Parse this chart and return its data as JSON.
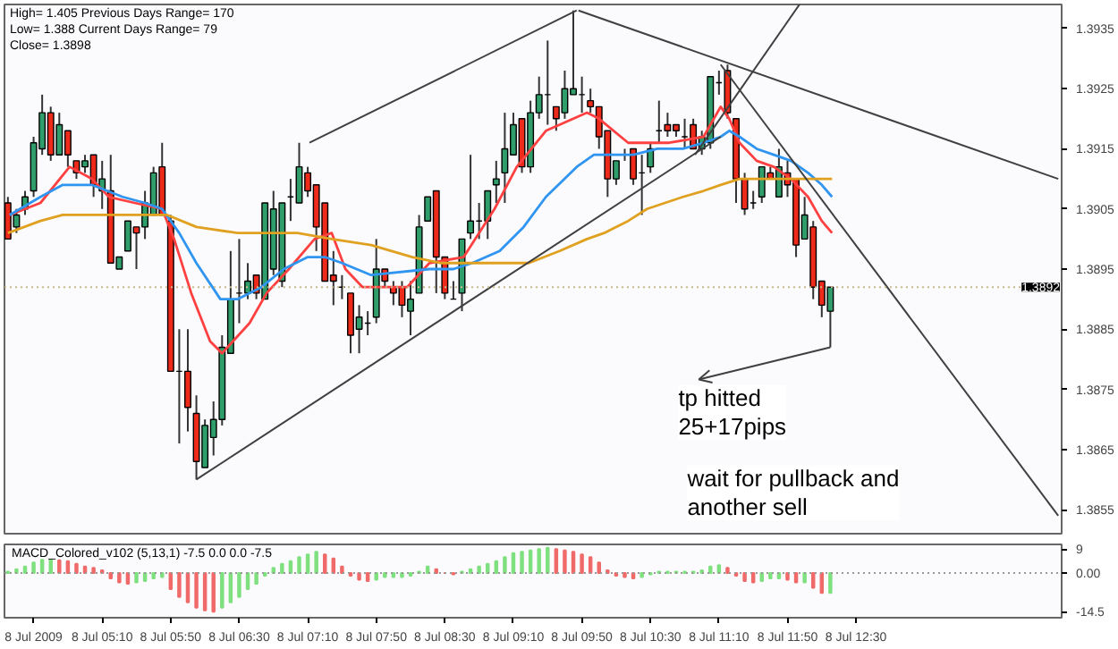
{
  "chart_data": [
    {
      "type": "candlestick",
      "x": [
        "2009-07-08T04:15",
        "2009-07-08T04:20",
        "2009-07-08T04:25",
        "2009-07-08T04:30",
        "2009-07-08T04:35",
        "2009-07-08T04:40",
        "2009-07-08T04:45",
        "2009-07-08T04:50",
        "2009-07-08T04:55",
        "2009-07-08T05:00",
        "2009-07-08T05:05",
        "2009-07-08T05:10",
        "2009-07-08T05:15",
        "2009-07-08T05:20",
        "2009-07-08T05:25",
        "2009-07-08T05:30",
        "2009-07-08T05:35",
        "2009-07-08T05:40",
        "2009-07-08T05:45",
        "2009-07-08T05:50",
        "2009-07-08T05:55",
        "2009-07-08T06:00",
        "2009-07-08T06:05",
        "2009-07-08T06:10",
        "2009-07-08T06:15",
        "2009-07-08T06:20",
        "2009-07-08T06:25",
        "2009-07-08T06:30",
        "2009-07-08T06:35",
        "2009-07-08T06:40",
        "2009-07-08T06:45",
        "2009-07-08T06:50",
        "2009-07-08T06:55",
        "2009-07-08T07:00",
        "2009-07-08T07:05",
        "2009-07-08T07:10",
        "2009-07-08T07:15",
        "2009-07-08T07:20",
        "2009-07-08T07:25",
        "2009-07-08T07:30",
        "2009-07-08T07:35",
        "2009-07-08T07:40",
        "2009-07-08T07:45",
        "2009-07-08T07:50",
        "2009-07-08T07:55",
        "2009-07-08T08:00",
        "2009-07-08T08:05",
        "2009-07-08T08:10",
        "2009-07-08T08:15",
        "2009-07-08T08:20",
        "2009-07-08T08:25",
        "2009-07-08T08:30",
        "2009-07-08T08:35",
        "2009-07-08T08:40",
        "2009-07-08T08:45",
        "2009-07-08T08:50",
        "2009-07-08T08:55",
        "2009-07-08T09:00",
        "2009-07-08T09:05",
        "2009-07-08T09:10",
        "2009-07-08T09:15",
        "2009-07-08T09:20",
        "2009-07-08T09:25",
        "2009-07-08T09:30",
        "2009-07-08T09:35",
        "2009-07-08T09:40",
        "2009-07-08T09:45",
        "2009-07-08T09:50",
        "2009-07-08T09:55",
        "2009-07-08T10:00",
        "2009-07-08T10:05",
        "2009-07-08T10:10",
        "2009-07-08T10:15",
        "2009-07-08T10:20",
        "2009-07-08T10:25",
        "2009-07-08T10:30",
        "2009-07-08T10:35",
        "2009-07-08T10:40",
        "2009-07-08T10:45",
        "2009-07-08T10:50",
        "2009-07-08T10:55",
        "2009-07-08T11:00",
        "2009-07-08T11:05",
        "2009-07-08T11:10",
        "2009-07-08T11:15",
        "2009-07-08T11:20",
        "2009-07-08T11:25",
        "2009-07-08T11:30",
        "2009-07-08T11:35",
        "2009-07-08T11:40",
        "2009-07-08T11:45",
        "2009-07-08T11:50",
        "2009-07-08T11:55",
        "2009-07-08T12:00",
        "2009-07-08T12:05",
        "2009-07-08T12:10",
        "2009-07-08T12:15"
      ],
      "ohlc": [
        [
          1.3906,
          1.3907,
          1.39,
          1.39
        ],
        [
          1.3902,
          1.3905,
          1.3901,
          1.3904
        ],
        [
          1.3905,
          1.3908,
          1.3904,
          1.3907
        ],
        [
          1.3908,
          1.3917,
          1.3907,
          1.3916
        ],
        [
          1.3915,
          1.3924,
          1.3914,
          1.3921
        ],
        [
          1.3921,
          1.3922,
          1.3913,
          1.3914
        ],
        [
          1.3914,
          1.3921,
          1.3914,
          1.3919
        ],
        [
          1.3918,
          1.3918,
          1.3912,
          1.3914
        ],
        [
          1.3913,
          1.3913,
          1.391,
          1.3911
        ],
        [
          1.3912,
          1.3914,
          1.3911,
          1.3913
        ],
        [
          1.3914,
          1.3914,
          1.3907,
          1.3909
        ],
        [
          1.3908,
          1.3913,
          1.3905,
          1.391
        ],
        [
          1.3908,
          1.3914,
          1.3896,
          1.3896
        ],
        [
          1.3895,
          1.3897,
          1.3895,
          1.3897
        ],
        [
          1.3898,
          1.3903,
          1.3898,
          1.3903
        ],
        [
          1.3902,
          1.3902,
          1.3895,
          1.3901
        ],
        [
          1.3902,
          1.3908,
          1.39,
          1.3906
        ],
        [
          1.3904,
          1.3912,
          1.3904,
          1.3911
        ],
        [
          1.3912,
          1.3916,
          1.3904,
          1.3904
        ],
        [
          1.3903,
          1.3904,
          1.3878,
          1.3878
        ],
        [
          1.3878,
          1.3885,
          1.3866,
          1.3878
        ],
        [
          1.3878,
          1.3885,
          1.3868,
          1.3872
        ],
        [
          1.3871,
          1.3874,
          1.386,
          1.3863
        ],
        [
          1.3862,
          1.387,
          1.3862,
          1.3869
        ],
        [
          1.3867,
          1.3873,
          1.3864,
          1.387
        ],
        [
          1.387,
          1.3884,
          1.3869,
          1.3882
        ],
        [
          1.3881,
          1.3898,
          1.3881,
          1.389
        ],
        [
          1.3891,
          1.39,
          1.3886,
          1.3891
        ],
        [
          1.3891,
          1.3896,
          1.389,
          1.3893
        ],
        [
          1.3894,
          1.3894,
          1.389,
          1.3891
        ],
        [
          1.389,
          1.3906,
          1.389,
          1.3906
        ],
        [
          1.3895,
          1.3908,
          1.3894,
          1.3905
        ],
        [
          1.3893,
          1.3906,
          1.3892,
          1.3906
        ],
        [
          1.3907,
          1.391,
          1.3903,
          1.3907
        ],
        [
          1.3906,
          1.3916,
          1.3906,
          1.3912
        ],
        [
          1.3911,
          1.3912,
          1.3907,
          1.3908
        ],
        [
          1.3909,
          1.3909,
          1.3898,
          1.3902
        ],
        [
          1.3906,
          1.3906,
          1.3893,
          1.3893
        ],
        [
          1.3894,
          1.3898,
          1.3889,
          1.3893
        ],
        [
          1.3892,
          1.3894,
          1.389,
          1.3892
        ],
        [
          1.3891,
          1.3891,
          1.3881,
          1.3884
        ],
        [
          1.3885,
          1.3889,
          1.3881,
          1.3887
        ],
        [
          1.3886,
          1.3888,
          1.3884,
          1.3886
        ],
        [
          1.3887,
          1.39,
          1.3886,
          1.3895
        ],
        [
          1.3895,
          1.3895,
          1.3892,
          1.3893
        ],
        [
          1.3892,
          1.3893,
          1.3889,
          1.3891
        ],
        [
          1.3892,
          1.3893,
          1.3887,
          1.3889
        ],
        [
          1.3888,
          1.3893,
          1.3884,
          1.389
        ],
        [
          1.3891,
          1.3904,
          1.3891,
          1.3902
        ],
        [
          1.3903,
          1.3907,
          1.3903,
          1.3907
        ],
        [
          1.3908,
          1.3908,
          1.3891,
          1.3897
        ],
        [
          1.3897,
          1.3897,
          1.389,
          1.3891
        ],
        [
          1.389,
          1.3893,
          1.389,
          1.389
        ],
        [
          1.3891,
          1.39,
          1.3888,
          1.39
        ],
        [
          1.3901,
          1.3914,
          1.39,
          1.3903
        ],
        [
          1.3903,
          1.3906,
          1.39,
          1.3903
        ],
        [
          1.3903,
          1.3908,
          1.39,
          1.3908
        ],
        [
          1.3909,
          1.3913,
          1.3906,
          1.391
        ],
        [
          1.3911,
          1.3921,
          1.3906,
          1.3915
        ],
        [
          1.3914,
          1.3921,
          1.3914,
          1.3919
        ],
        [
          1.392,
          1.392,
          1.3911,
          1.3912
        ],
        [
          1.3912,
          1.3923,
          1.3911,
          1.3921
        ],
        [
          1.3921,
          1.3927,
          1.392,
          1.3924
        ],
        [
          1.3924,
          1.3933,
          1.3919,
          1.3924
        ],
        [
          1.3922,
          1.3922,
          1.3918,
          1.392
        ],
        [
          1.3921,
          1.3928,
          1.392,
          1.3925
        ],
        [
          1.3924,
          1.3938,
          1.3924,
          1.3925
        ],
        [
          1.3924,
          1.3927,
          1.3921,
          1.3924
        ],
        [
          1.3923,
          1.3925,
          1.3921,
          1.3922
        ],
        [
          1.3922,
          1.3922,
          1.3915,
          1.3917
        ],
        [
          1.3918,
          1.3918,
          1.3907,
          1.391
        ],
        [
          1.391,
          1.3913,
          1.3909,
          1.3913
        ],
        [
          1.3914,
          1.3915,
          1.3913,
          1.3914
        ],
        [
          1.3915,
          1.3915,
          1.3909,
          1.391
        ],
        [
          1.3911,
          1.3914,
          1.3904,
          1.3911
        ],
        [
          1.3912,
          1.3916,
          1.3911,
          1.3915
        ],
        [
          1.3918,
          1.3923,
          1.3916,
          1.3918
        ],
        [
          1.3919,
          1.3921,
          1.3917,
          1.3918
        ],
        [
          1.3919,
          1.3919,
          1.3917,
          1.3918
        ],
        [
          1.3917,
          1.392,
          1.3915,
          1.3917
        ],
        [
          1.3919,
          1.392,
          1.3915,
          1.3915
        ],
        [
          1.3915,
          1.3918,
          1.3914,
          1.3917
        ],
        [
          1.3916,
          1.3927,
          1.3915,
          1.3927
        ],
        [
          1.3926,
          1.3928,
          1.3924,
          1.3926
        ],
        [
          1.3928,
          1.3929,
          1.392,
          1.3921
        ],
        [
          1.392,
          1.392,
          1.3906,
          1.391
        ],
        [
          1.391,
          1.3911,
          1.3904,
          1.3905
        ],
        [
          1.3906,
          1.3908,
          1.3905,
          1.3906
        ],
        [
          1.3907,
          1.3912,
          1.3906,
          1.3912
        ],
        [
          1.3911,
          1.3912,
          1.391,
          1.391
        ],
        [
          1.3907,
          1.3915,
          1.3907,
          1.3912
        ],
        [
          1.3911,
          1.3913,
          1.3907,
          1.3909
        ],
        [
          1.391,
          1.391,
          1.3897,
          1.3899
        ],
        [
          1.39,
          1.3907,
          1.39,
          1.3904
        ],
        [
          1.3902,
          1.3903,
          1.389,
          1.3892
        ],
        [
          1.3893,
          1.3893,
          1.3887,
          1.3889
        ],
        [
          1.3888,
          1.3892,
          1.3882,
          1.3892
        ]
      ],
      "colors": [
        "#ee2a1b",
        "#2f9e6b",
        "#2f9e6b",
        "#2f9e6b",
        "#2f9e6b",
        "#ee2a1b",
        "#2f9e6b",
        "#ee2a1b",
        "#ee2a1b",
        "#2f9e6b",
        "#ee2a1b",
        "#2f9e6b",
        "#ee2a1b",
        "#2f9e6b",
        "#2f9e6b",
        "#ee2a1b",
        "#2f9e6b",
        "#2f9e6b",
        "#ee2a1b",
        "#ee2a1b",
        "#000000",
        "#ee2a1b",
        "#ee2a1b",
        "#2f9e6b",
        "#2f9e6b",
        "#2f9e6b",
        "#2f9e6b",
        "#000000",
        "#2f9e6b",
        "#ee2a1b",
        "#2f9e6b",
        "#2f9e6b",
        "#2f9e6b",
        "#000000",
        "#2f9e6b",
        "#ee2a1b",
        "#ee2a1b",
        "#ee2a1b",
        "#ee2a1b",
        "#000000",
        "#ee2a1b",
        "#2f9e6b",
        "#000000",
        "#2f9e6b",
        "#ee2a1b",
        "#ee2a1b",
        "#ee2a1b",
        "#2f9e6b",
        "#2f9e6b",
        "#2f9e6b",
        "#ee2a1b",
        "#ee2a1b",
        "#000000",
        "#2f9e6b",
        "#2f9e6b",
        "#000000",
        "#2f9e6b",
        "#2f9e6b",
        "#2f9e6b",
        "#2f9e6b",
        "#ee2a1b",
        "#2f9e6b",
        "#2f9e6b",
        "#000000",
        "#ee2a1b",
        "#2f9e6b",
        "#2f9e6b",
        "#000000",
        "#ee2a1b",
        "#ee2a1b",
        "#ee2a1b",
        "#2f9e6b",
        "#000000",
        "#ee2a1b",
        "#000000",
        "#2f9e6b",
        "#000000",
        "#ee2a1b",
        "#ee2a1b",
        "#000000",
        "#ee2a1b",
        "#2f9e6b",
        "#2f9e6b",
        "#000000",
        "#ee2a1b",
        "#ee2a1b",
        "#ee2a1b",
        "#000000",
        "#2f9e6b",
        "#ee2a1b",
        "#2f9e6b",
        "#ee2a1b",
        "#ee2a1b",
        "#2f9e6b",
        "#ee2a1b",
        "#ee2a1b",
        "#2f9e6b"
      ],
      "series": [
        {
          "type": "line",
          "color": "#ff4040",
          "x": [
            "2009-07-08T04:16",
            "2009-07-08T04:34",
            "2009-07-08T04:51",
            "2009-07-08T05:04",
            "2009-07-08T05:14",
            "2009-07-08T05:29",
            "2009-07-08T05:45",
            "2009-07-08T05:52",
            "2009-07-08T06:02",
            "2009-07-08T06:13",
            "2009-07-08T06:20",
            "2009-07-08T06:36",
            "2009-07-08T06:46",
            "2009-07-08T06:59",
            "2009-07-08T07:14",
            "2009-07-08T07:24",
            "2009-07-08T07:32",
            "2009-07-08T07:42",
            "2009-07-08T08:08",
            "2009-07-08T08:21",
            "2009-07-08T08:41",
            "2009-07-08T08:59",
            "2009-07-08T09:12",
            "2009-07-08T09:29",
            "2009-07-08T09:53",
            "2009-07-08T10:00",
            "2009-07-08T10:17",
            "2009-07-08T10:28",
            "2009-07-08T10:41",
            "2009-07-08T11:01",
            "2009-07-08T11:11",
            "2009-07-08T11:16",
            "2009-07-08T11:22",
            "2009-07-08T11:32",
            "2009-07-08T11:42",
            "2009-07-08T11:52",
            "2009-07-08T12:02",
            "2009-07-08T12:10",
            "2009-07-08T12:16"
          ],
          "values": [
            1.3904,
            1.3906,
            1.3912,
            1.391,
            1.3907,
            1.3906,
            1.3905,
            1.39,
            1.3891,
            1.3883,
            1.3881,
            1.3886,
            1.3891,
            1.3895,
            1.39,
            1.3901,
            1.3895,
            1.3892,
            1.3892,
            1.3896,
            1.3897,
            1.3905,
            1.3912,
            1.3918,
            1.3921,
            1.392,
            1.3916,
            1.3916,
            1.3916,
            1.3917,
            1.3922,
            1.392,
            1.3916,
            1.3913,
            1.3912,
            1.391,
            1.3907,
            1.3903,
            1.3901
          ]
        },
        {
          "type": "line",
          "color": "#2f95f0",
          "x": [
            "2009-07-08T04:16",
            "2009-07-08T04:34",
            "2009-07-08T04:47",
            "2009-07-08T05:04",
            "2009-07-08T05:22",
            "2009-07-08T05:35",
            "2009-07-08T05:45",
            "2009-07-08T05:55",
            "2009-07-08T06:05",
            "2009-07-08T06:19",
            "2009-07-08T06:29",
            "2009-07-08T06:43",
            "2009-07-08T06:56",
            "2009-07-08T07:10",
            "2009-07-08T07:20",
            "2009-07-08T07:30",
            "2009-07-08T07:47",
            "2009-07-08T08:21",
            "2009-07-08T08:35",
            "2009-07-08T08:46",
            "2009-07-08T09:02",
            "2009-07-08T09:16",
            "2009-07-08T09:29",
            "2009-07-08T09:47",
            "2009-07-08T09:57",
            "2009-07-08T10:20",
            "2009-07-08T10:34",
            "2009-07-08T10:49",
            "2009-07-08T11:01",
            "2009-07-08T11:11",
            "2009-07-08T11:16",
            "2009-07-08T11:22",
            "2009-07-08T11:32",
            "2009-07-08T11:42",
            "2009-07-08T11:52",
            "2009-07-08T12:02",
            "2009-07-08T12:10",
            "2009-07-08T12:16"
          ],
          "values": [
            1.3904,
            1.3907,
            1.3909,
            1.3909,
            1.3907,
            1.3906,
            1.3905,
            1.3901,
            1.3896,
            1.389,
            1.389,
            1.3892,
            1.3895,
            1.3897,
            1.3897,
            1.3896,
            1.3894,
            1.3895,
            1.3895,
            1.3896,
            1.3898,
            1.3902,
            1.3907,
            1.3912,
            1.3914,
            1.3914,
            1.3915,
            1.3915,
            1.3916,
            1.3917,
            1.3918,
            1.3917,
            1.3915,
            1.3914,
            1.3913,
            1.3911,
            1.3909,
            1.3907
          ]
        },
        {
          "type": "line",
          "color": "#e0a020",
          "x": [
            "2009-07-08T04:15",
            "2009-07-08T04:34",
            "2009-07-08T04:47",
            "2009-07-08T05:04",
            "2009-07-08T05:22",
            "2009-07-08T05:38",
            "2009-07-08T05:48",
            "2009-07-08T06:05",
            "2009-07-08T06:29",
            "2009-07-08T07:04",
            "2009-07-08T07:24",
            "2009-07-08T07:47",
            "2009-07-08T08:11",
            "2009-07-08T08:28",
            "2009-07-08T08:46",
            "2009-07-08T09:02",
            "2009-07-08T09:19",
            "2009-07-08T09:37",
            "2009-07-08T09:53",
            "2009-07-08T10:03",
            "2009-07-08T10:17",
            "2009-07-08T10:28",
            "2009-07-08T10:49",
            "2009-07-08T11:01",
            "2009-07-08T11:11",
            "2009-07-08T11:22",
            "2009-07-08T11:35",
            "2009-07-08T11:52",
            "2009-07-08T12:16"
          ],
          "values": [
            1.3901,
            1.3903,
            1.3904,
            1.3904,
            1.3904,
            1.3904,
            1.3904,
            1.3902,
            1.3901,
            1.3901,
            1.39,
            1.3899,
            1.3897,
            1.3896,
            1.3896,
            1.3896,
            1.3896,
            1.3898,
            1.39,
            1.3901,
            1.3903,
            1.3905,
            1.3907,
            1.3908,
            1.3909,
            1.391,
            1.391,
            1.391,
            1.391
          ]
        },
        {
          "type": "line",
          "color": "#404040",
          "x": [
            "2009-07-08T06:05",
            "2009-07-08T11:11"
          ],
          "values": [
            1.386,
            1.3917
          ]
        },
        {
          "type": "line",
          "color": "#404040",
          "x": [
            "2009-07-08T10:56",
            "2009-07-08T11:57"
          ],
          "values": [
            1.3914,
            1.3939
          ]
        },
        {
          "type": "line",
          "color": "#404040",
          "x": [
            "2009-07-08T07:11",
            "2009-07-08T09:47"
          ],
          "values": [
            1.3916,
            1.3938
          ]
        },
        {
          "type": "line",
          "color": "#404040",
          "x": [
            "2009-07-08T09:48",
            "2009-07-08T14:28"
          ],
          "values": [
            1.3938,
            1.391
          ]
        },
        {
          "type": "line",
          "color": "#404040",
          "x": [
            "2009-07-08T11:11",
            "2009-07-08T14:28"
          ],
          "values": [
            1.3929,
            1.3854
          ]
        }
      ],
      "xlim": [
        "2009-07-08T04:13",
        "2009-07-08T14:30"
      ],
      "ylim": [
        1.3851,
        1.3939
      ],
      "yticks": [
        1.3855,
        1.3865,
        1.3875,
        1.3885,
        1.3895,
        1.3905,
        1.3915,
        1.3925,
        1.3935
      ],
      "tick_labels": "y",
      "ref_lines": [
        {
          "axis": "y",
          "value": 1.3892,
          "label": "1.3892",
          "color": "#c8b88a",
          "line_style": "dotted"
        }
      ],
      "annotations": [
        "High= 1.405    Previous Days Range= 170",
        "Low= 1.388    Current Days Range= 79",
        "Close= 1.3898",
        {
          "text": "tp hitted\n25+17pips",
          "x": "2009-07-08T12:15",
          "y": 1.3882
        },
        "wait for pullback and\nanother sell"
      ]
    },
    {
      "type": "bar",
      "title": "MACD_Colored_v102 (5,13,1) -7.5 0.0 0.0 -7.5",
      "x": [
        "2009-07-08T04:15",
        "2009-07-08T04:20",
        "2009-07-08T04:25",
        "2009-07-08T04:30",
        "2009-07-08T04:35",
        "2009-07-08T04:40",
        "2009-07-08T04:45",
        "2009-07-08T04:50",
        "2009-07-08T04:55",
        "2009-07-08T05:00",
        "2009-07-08T05:05",
        "2009-07-08T05:10",
        "2009-07-08T05:15",
        "2009-07-08T05:20",
        "2009-07-08T05:25",
        "2009-07-08T05:30",
        "2009-07-08T05:35",
        "2009-07-08T05:40",
        "2009-07-08T05:45",
        "2009-07-08T05:50",
        "2009-07-08T05:55",
        "2009-07-08T06:00",
        "2009-07-08T06:05",
        "2009-07-08T06:10",
        "2009-07-08T06:15",
        "2009-07-08T06:20",
        "2009-07-08T06:25",
        "2009-07-08T06:30",
        "2009-07-08T06:35",
        "2009-07-08T06:40",
        "2009-07-08T06:45",
        "2009-07-08T06:50",
        "2009-07-08T06:55",
        "2009-07-08T07:00",
        "2009-07-08T07:05",
        "2009-07-08T07:10",
        "2009-07-08T07:15",
        "2009-07-08T07:20",
        "2009-07-08T07:25",
        "2009-07-08T07:30",
        "2009-07-08T07:35",
        "2009-07-08T07:40",
        "2009-07-08T07:45",
        "2009-07-08T07:50",
        "2009-07-08T07:55",
        "2009-07-08T08:00",
        "2009-07-08T08:05",
        "2009-07-08T08:10",
        "2009-07-08T08:15",
        "2009-07-08T08:20",
        "2009-07-08T08:25",
        "2009-07-08T08:30",
        "2009-07-08T08:35",
        "2009-07-08T08:40",
        "2009-07-08T08:45",
        "2009-07-08T08:50",
        "2009-07-08T08:55",
        "2009-07-08T09:00",
        "2009-07-08T09:05",
        "2009-07-08T09:10",
        "2009-07-08T09:15",
        "2009-07-08T09:20",
        "2009-07-08T09:25",
        "2009-07-08T09:30",
        "2009-07-08T09:35",
        "2009-07-08T09:40",
        "2009-07-08T09:45",
        "2009-07-08T09:50",
        "2009-07-08T09:55",
        "2009-07-08T10:00",
        "2009-07-08T10:05",
        "2009-07-08T10:10",
        "2009-07-08T10:15",
        "2009-07-08T10:20",
        "2009-07-08T10:25",
        "2009-07-08T10:30",
        "2009-07-08T10:35",
        "2009-07-08T10:40",
        "2009-07-08T10:45",
        "2009-07-08T10:50",
        "2009-07-08T10:55",
        "2009-07-08T11:00",
        "2009-07-08T11:05",
        "2009-07-08T11:10",
        "2009-07-08T11:15",
        "2009-07-08T11:20",
        "2009-07-08T11:25",
        "2009-07-08T11:30",
        "2009-07-08T11:35",
        "2009-07-08T11:40",
        "2009-07-08T11:45",
        "2009-07-08T11:50",
        "2009-07-08T11:55",
        "2009-07-08T12:00",
        "2009-07-08T12:05",
        "2009-07-08T12:10",
        "2009-07-08T12:15"
      ],
      "values": [
        0.5,
        1.5,
        2.5,
        4,
        5,
        5,
        4.8,
        4.5,
        3.5,
        2.5,
        2,
        1,
        -2,
        -3.5,
        -4,
        -3.5,
        -3,
        -2,
        -1.5,
        -6,
        -9,
        -11,
        -13,
        -14,
        -14.5,
        -13,
        -11,
        -9,
        -6,
        -4,
        -1,
        2,
        3.5,
        4.5,
        6,
        7,
        8,
        7,
        5.5,
        2.5,
        -1,
        -2.5,
        -3,
        -2.5,
        -1.5,
        -1.5,
        -1.5,
        -1,
        0.5,
        2.5,
        1.5,
        0,
        -0.5,
        0.5,
        1.5,
        2.5,
        3.5,
        4.5,
        6,
        7.5,
        8,
        8.5,
        9,
        9.5,
        9,
        8.5,
        8,
        7,
        6,
        4,
        1,
        -1,
        -1.5,
        -2,
        -1.5,
        -0.5,
        0.5,
        0.5,
        0.5,
        0.5,
        0.5,
        1,
        2.5,
        3,
        2,
        -1,
        -3,
        -3.5,
        -3,
        -2,
        -2,
        -2.5,
        -3.5,
        -3.5,
        -5.5,
        -7.5,
        -7.5
      ],
      "colors": [
        "#7ee07e",
        "#7ee07e",
        "#7ee07e",
        "#7ee07e",
        "#7ee07e",
        "#7ee07e",
        "#f06a6a",
        "#f06a6a",
        "#f06a6a",
        "#f06a6a",
        "#f06a6a",
        "#f06a6a",
        "#f06a6a",
        "#f06a6a",
        "#f06a6a",
        "#7ee07e",
        "#7ee07e",
        "#7ee07e",
        "#7ee07e",
        "#f06a6a",
        "#f06a6a",
        "#f06a6a",
        "#f06a6a",
        "#f06a6a",
        "#f06a6a",
        "#7ee07e",
        "#7ee07e",
        "#7ee07e",
        "#7ee07e",
        "#7ee07e",
        "#7ee07e",
        "#7ee07e",
        "#7ee07e",
        "#7ee07e",
        "#7ee07e",
        "#7ee07e",
        "#7ee07e",
        "#f06a6a",
        "#f06a6a",
        "#f06a6a",
        "#f06a6a",
        "#f06a6a",
        "#f06a6a",
        "#7ee07e",
        "#7ee07e",
        "#7ee07e",
        "#7ee07e",
        "#7ee07e",
        "#7ee07e",
        "#7ee07e",
        "#f06a6a",
        "#f06a6a",
        "#f06a6a",
        "#7ee07e",
        "#7ee07e",
        "#7ee07e",
        "#7ee07e",
        "#7ee07e",
        "#7ee07e",
        "#7ee07e",
        "#7ee07e",
        "#7ee07e",
        "#7ee07e",
        "#7ee07e",
        "#f06a6a",
        "#f06a6a",
        "#f06a6a",
        "#f06a6a",
        "#f06a6a",
        "#f06a6a",
        "#f06a6a",
        "#f06a6a",
        "#f06a6a",
        "#f06a6a",
        "#7ee07e",
        "#7ee07e",
        "#7ee07e",
        "#7ee07e",
        "#7ee07e",
        "#7ee07e",
        "#7ee07e",
        "#7ee07e",
        "#7ee07e",
        "#7ee07e",
        "#f06a6a",
        "#f06a6a",
        "#f06a6a",
        "#f06a6a",
        "#7ee07e",
        "#7ee07e",
        "#7ee07e",
        "#f06a6a",
        "#f06a6a",
        "#7ee07e",
        "#f06a6a",
        "#f06a6a",
        "#7ee07e"
      ],
      "xlim": [
        "2009-07-08T04:13",
        "2009-07-08T14:30"
      ],
      "ylim": [
        -16.8,
        10.8
      ],
      "xticks": [
        {
          "value": "2009-07-08T04:30",
          "label": "8 Jul 2009"
        },
        {
          "value": "2009-07-08T05:10",
          "label": "8 Jul 05:10"
        },
        {
          "value": "2009-07-08T05:50",
          "label": "8 Jul 05:50"
        },
        {
          "value": "2009-07-08T06:30",
          "label": "8 Jul 06:30"
        },
        {
          "value": "2009-07-08T07:10",
          "label": "8 Jul 07:10"
        },
        {
          "value": "2009-07-08T07:50",
          "label": "8 Jul 07:50"
        },
        {
          "value": "2009-07-08T08:30",
          "label": "8 Jul 08:30"
        },
        {
          "value": "2009-07-08T09:10",
          "label": "8 Jul 09:10"
        },
        {
          "value": "2009-07-08T09:50",
          "label": "8 Jul 09:50"
        },
        {
          "value": "2009-07-08T10:30",
          "label": "8 Jul 10:30"
        },
        {
          "value": "2009-07-08T11:10",
          "label": "8 Jul 11:10"
        },
        {
          "value": "2009-07-08T11:50",
          "label": "8 Jul 11:50"
        },
        {
          "value": "2009-07-08T12:30",
          "label": "8 Jul 12:30"
        }
      ],
      "yticks": [
        9,
        {
          "value": 0,
          "label": "0.00"
        },
        -14.5
      ],
      "ref_lines": [
        {
          "axis": "y",
          "value": 0,
          "label": null,
          "color": "#999999",
          "line_style": "dotted"
        }
      ]
    }
  ]
}
